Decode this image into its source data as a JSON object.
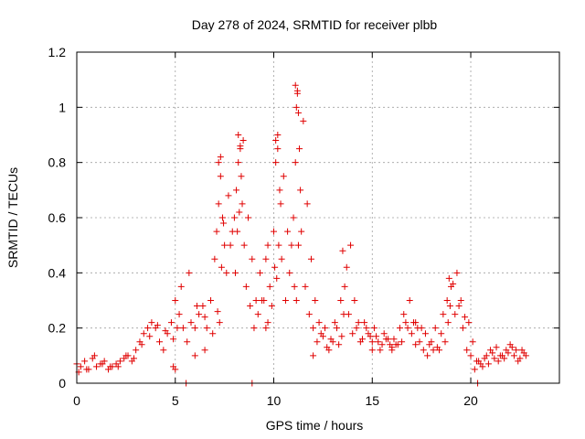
{
  "chart_data": {
    "type": "scatter",
    "title": "Day 278 of 2024, SRMTID for receiver plbb",
    "xlabel": "GPS time / hours",
    "ylabel": "SRMTID / TECUs",
    "xlim": [
      0,
      24.5
    ],
    "ylim": [
      0,
      1.2
    ],
    "x_ticks": [
      0,
      5,
      10,
      15,
      20
    ],
    "x_tick_labels": [
      "0",
      "5",
      "10",
      "15",
      "20"
    ],
    "y_ticks": [
      0,
      0.2,
      0.4,
      0.6,
      0.8,
      1.0,
      1.2
    ],
    "y_tick_labels": [
      "0",
      "0.2",
      "0.4",
      "0.6",
      "0.8",
      "1",
      "1.2"
    ],
    "grid": true,
    "marker": "plus",
    "series_color": "#e00000",
    "series": [
      {
        "name": "SRMTID",
        "x": [
          0.0,
          0.2,
          0.4,
          0.6,
          0.8,
          1.0,
          1.2,
          1.4,
          1.6,
          1.8,
          2.0,
          2.2,
          2.4,
          2.6,
          2.8,
          3.0,
          3.2,
          3.4,
          3.6,
          3.8,
          4.0,
          4.2,
          4.4,
          4.6,
          4.8,
          5.0,
          5.2,
          5.4,
          5.6,
          5.8,
          6.0,
          6.2,
          6.4,
          6.6,
          6.8,
          7.0,
          7.1,
          7.2,
          7.3,
          7.4,
          7.5,
          7.6,
          7.8,
          8.0,
          8.1,
          8.2,
          8.3,
          8.4,
          8.5,
          8.6,
          8.8,
          9.0,
          9.2,
          9.4,
          9.6,
          9.8,
          10.0,
          10.1,
          10.2,
          10.3,
          10.4,
          10.6,
          10.8,
          11.0,
          11.1,
          11.2,
          11.3,
          11.4,
          11.6,
          11.8,
          12.0,
          12.2,
          12.4,
          12.6,
          12.8,
          13.0,
          13.2,
          13.4,
          13.5,
          13.6,
          13.8,
          14.0,
          14.2,
          14.4,
          14.6,
          14.8,
          15.0,
          15.2,
          15.4,
          15.6,
          15.8,
          16.0,
          16.2,
          16.4,
          16.6,
          16.8,
          17.0,
          17.2,
          17.4,
          17.6,
          17.8,
          18.0,
          18.2,
          18.4,
          18.6,
          18.8,
          18.9,
          19.0,
          19.2,
          19.4,
          19.6,
          19.8,
          20.0,
          20.2,
          20.4,
          20.6,
          20.8,
          21.0,
          21.2,
          21.4,
          21.6,
          21.8,
          22.0,
          22.2,
          22.4,
          22.6,
          22.8,
          0.1,
          0.5,
          0.9,
          1.3,
          1.7,
          2.1,
          2.5,
          2.9,
          3.3,
          3.7,
          4.1,
          4.5,
          4.9,
          5.1,
          5.3,
          5.7,
          6.1,
          6.5,
          6.9,
          7.15,
          7.25,
          7.35,
          7.45,
          7.7,
          7.9,
          8.05,
          8.15,
          8.25,
          8.35,
          8.45,
          8.7,
          8.9,
          9.1,
          9.3,
          9.5,
          9.7,
          9.9,
          10.05,
          10.15,
          10.25,
          10.35,
          10.5,
          10.7,
          10.9,
          11.05,
          11.15,
          11.25,
          11.35,
          11.5,
          11.7,
          11.9,
          12.1,
          12.3,
          12.5,
          12.7,
          12.9,
          13.1,
          13.3,
          13.45,
          13.55,
          13.7,
          13.9,
          14.1,
          14.3,
          14.5,
          14.7,
          14.9,
          15.1,
          15.3,
          15.5,
          15.7,
          15.9,
          16.1,
          16.3,
          16.5,
          16.7,
          16.9,
          17.1,
          17.3,
          17.5,
          17.7,
          17.9,
          18.1,
          18.3,
          18.5,
          18.7,
          18.85,
          18.95,
          19.1,
          19.3,
          19.5,
          19.7,
          19.9,
          20.1,
          20.3,
          20.5,
          20.7,
          20.9,
          21.1,
          21.3,
          21.5,
          21.7,
          21.9,
          22.1,
          22.3,
          22.5,
          22.7,
          5.55,
          8.9,
          20.35,
          7.2,
          7.3,
          8.2,
          8.3,
          10.1,
          10.2,
          11.1,
          11.2,
          11.15,
          11.25,
          6.0,
          6.5,
          5.0,
          4.9,
          9.6,
          9.7,
          12.0,
          15.0,
          16.0,
          17.2
        ],
        "y": [
          0.07,
          0.06,
          0.08,
          0.05,
          0.09,
          0.06,
          0.07,
          0.08,
          0.05,
          0.06,
          0.07,
          0.08,
          0.09,
          0.1,
          0.08,
          0.12,
          0.15,
          0.18,
          0.2,
          0.22,
          0.2,
          0.15,
          0.12,
          0.18,
          0.22,
          0.3,
          0.25,
          0.2,
          0.15,
          0.22,
          0.2,
          0.25,
          0.28,
          0.2,
          0.3,
          0.45,
          0.55,
          0.65,
          0.75,
          0.6,
          0.5,
          0.4,
          0.5,
          0.6,
          0.7,
          0.8,
          0.85,
          0.65,
          0.5,
          0.35,
          0.28,
          0.2,
          0.25,
          0.3,
          0.2,
          0.35,
          0.55,
          0.8,
          0.85,
          0.7,
          0.45,
          0.3,
          0.4,
          0.6,
          0.8,
          1.05,
          0.85,
          0.55,
          0.35,
          0.25,
          0.2,
          0.15,
          0.18,
          0.2,
          0.12,
          0.15,
          0.2,
          0.3,
          0.48,
          0.35,
          0.25,
          0.18,
          0.2,
          0.15,
          0.22,
          0.18,
          0.15,
          0.17,
          0.12,
          0.18,
          0.16,
          0.12,
          0.14,
          0.2,
          0.25,
          0.2,
          0.18,
          0.22,
          0.15,
          0.12,
          0.1,
          0.15,
          0.2,
          0.12,
          0.25,
          0.3,
          0.38,
          0.35,
          0.25,
          0.28,
          0.2,
          0.12,
          0.1,
          0.05,
          0.08,
          0.06,
          0.1,
          0.12,
          0.09,
          0.08,
          0.1,
          0.12,
          0.14,
          0.1,
          0.08,
          0.12,
          0.1,
          0.04,
          0.05,
          0.1,
          0.07,
          0.06,
          0.06,
          0.1,
          0.09,
          0.14,
          0.17,
          0.21,
          0.19,
          0.16,
          0.2,
          0.35,
          0.4,
          0.28,
          0.24,
          0.18,
          0.26,
          0.22,
          0.42,
          0.58,
          0.68,
          0.55,
          0.4,
          0.55,
          0.62,
          0.75,
          0.88,
          0.6,
          0.45,
          0.3,
          0.4,
          0.3,
          0.22,
          0.28,
          0.42,
          0.38,
          0.5,
          0.65,
          0.75,
          0.55,
          0.5,
          0.35,
          0.3,
          0.5,
          0.7,
          0.95,
          0.65,
          0.45,
          0.3,
          0.22,
          0.17,
          0.13,
          0.16,
          0.22,
          0.14,
          0.17,
          0.25,
          0.42,
          0.5,
          0.3,
          0.22,
          0.16,
          0.2,
          0.17,
          0.2,
          0.15,
          0.14,
          0.16,
          0.14,
          0.16,
          0.14,
          0.15,
          0.22,
          0.3,
          0.22,
          0.2,
          0.2,
          0.18,
          0.14,
          0.12,
          0.13,
          0.18,
          0.15,
          0.22,
          0.28,
          0.36,
          0.4,
          0.3,
          0.24,
          0.22,
          0.15,
          0.08,
          0.07,
          0.09,
          0.07,
          0.11,
          0.13,
          0.1,
          0.09,
          0.11,
          0.13,
          0.12,
          0.09,
          0.11,
          0.0,
          0.0,
          0.0,
          0.8,
          0.82,
          0.9,
          0.86,
          0.88,
          0.9,
          1.08,
          1.06,
          1.0,
          0.98,
          0.1,
          0.12,
          0.05,
          0.06,
          0.45,
          0.5,
          0.1,
          0.12,
          0.13,
          0.14
        ]
      }
    ]
  }
}
